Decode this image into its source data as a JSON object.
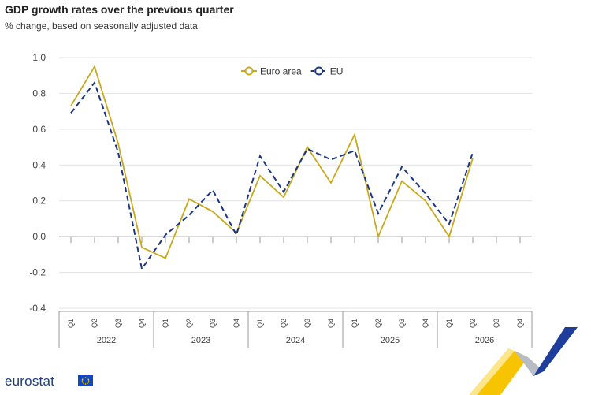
{
  "header": {
    "title": "GDP growth rates over the previous quarter",
    "subtitle": "% change, based on seasonally adjusted data"
  },
  "branding": {
    "logo_text": "eurostat"
  },
  "chart_data": {
    "type": "line",
    "title": "GDP growth rates over the previous quarter",
    "subtitle": "% change, based on seasonally adjusted data",
    "xlabel": "",
    "ylabel": "",
    "ylim": [
      -0.4,
      1.0
    ],
    "yticks": [
      1.0,
      0.8,
      0.6,
      0.4,
      0.2,
      0.0,
      -0.2,
      -0.4
    ],
    "ytick_labels": [
      "1.0",
      "0.8",
      "0.6",
      "0.4",
      "0.2",
      "0.0",
      "-0.2",
      "-0.4"
    ],
    "grid": true,
    "legend_position": "top-center",
    "categories": [
      "Q1",
      "Q2",
      "Q3",
      "Q4",
      "Q1",
      "Q2",
      "Q3",
      "Q4",
      "Q1",
      "Q2",
      "Q3",
      "Q4",
      "Q1",
      "Q2",
      "Q3",
      "Q4",
      "Q1",
      "Q2",
      "Q3",
      "Q4"
    ],
    "groups": [
      {
        "label": "2022",
        "count": 4
      },
      {
        "label": "2023",
        "count": 4
      },
      {
        "label": "2024",
        "count": 4
      },
      {
        "label": "2025",
        "count": 4
      },
      {
        "label": "2026",
        "count": 4
      }
    ],
    "series": [
      {
        "name": "Euro area",
        "color": "#c8a91e",
        "dash": "solid",
        "values": [
          0.73,
          0.95,
          0.52,
          -0.06,
          -0.12,
          0.21,
          0.14,
          0.02,
          0.34,
          0.22,
          0.5,
          0.3,
          0.57,
          0.0,
          0.31,
          0.2,
          0.0,
          0.44,
          null,
          null
        ]
      },
      {
        "name": "EU",
        "color": "#1c3782",
        "dash": "dashed",
        "values": [
          0.69,
          0.86,
          0.47,
          -0.18,
          0.01,
          0.12,
          0.26,
          0.01,
          0.45,
          0.25,
          0.49,
          0.43,
          0.48,
          0.13,
          0.39,
          0.24,
          0.07,
          0.47,
          null,
          null
        ]
      }
    ]
  }
}
